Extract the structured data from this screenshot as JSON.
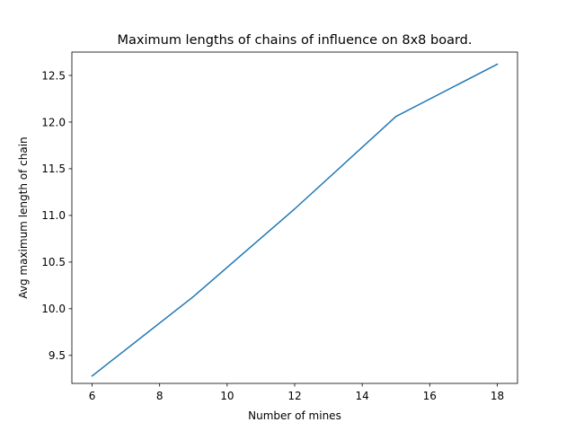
{
  "chart_data": {
    "type": "line",
    "title": "Maximum lengths of chains of influence on 8x8 board.",
    "xlabel": "Number of mines",
    "ylabel": "Avg maximum length of chain",
    "xlim": [
      5.4,
      18.6
    ],
    "ylim": [
      9.2,
      12.75
    ],
    "xticks": [
      6,
      8,
      10,
      12,
      14,
      16,
      18
    ],
    "xtick_labels": [
      "6",
      "8",
      "10",
      "12",
      "14",
      "16",
      "18"
    ],
    "yticks": [
      9.5,
      10.0,
      10.5,
      11.0,
      11.5,
      12.0,
      12.5
    ],
    "ytick_labels": [
      "9.5",
      "10.0",
      "10.5",
      "11.0",
      "11.5",
      "12.0",
      "12.5"
    ],
    "grid": false,
    "legend": "none",
    "series": [
      {
        "color": "#1f77b4",
        "x": [
          6,
          9,
          12,
          15,
          18
        ],
        "y": [
          9.28,
          10.13,
          11.07,
          12.06,
          12.62
        ]
      }
    ]
  }
}
